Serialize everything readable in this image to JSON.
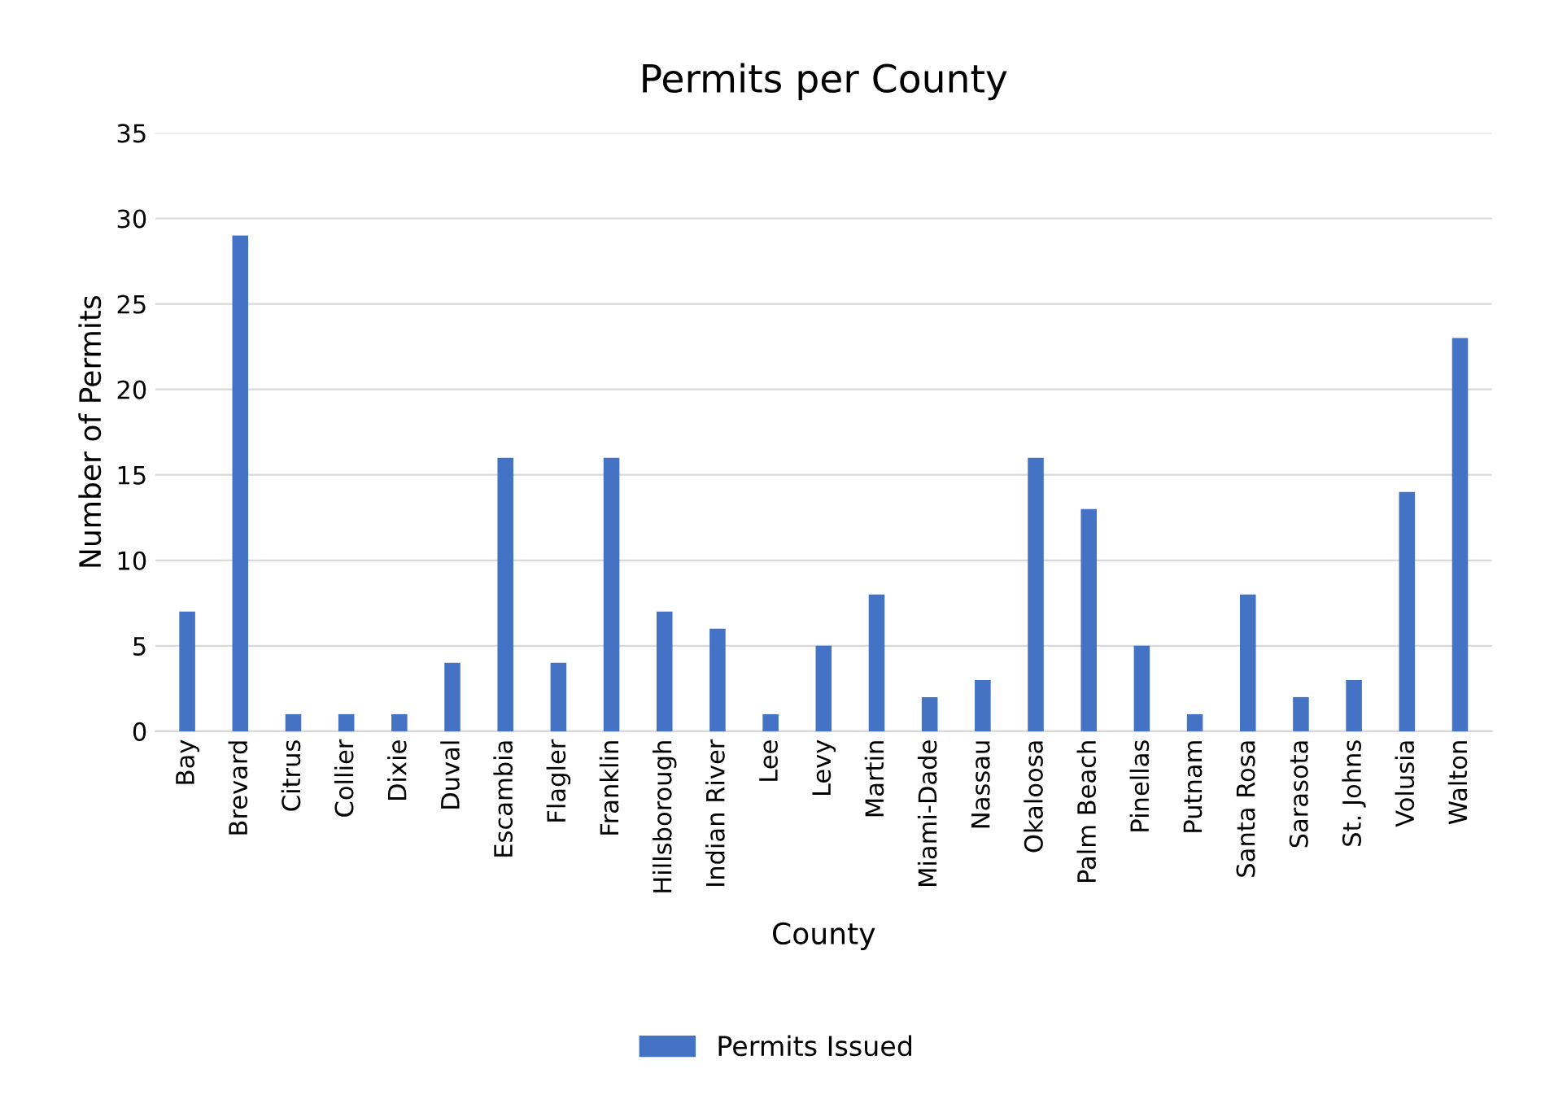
{
  "chart_data": {
    "type": "bar",
    "title": "Permits per County",
    "xlabel": "County",
    "ylabel": "Number of Permits",
    "categories": [
      "Bay",
      "Brevard",
      "Citrus",
      "Collier",
      "Dixie",
      "Duval",
      "Escambia",
      "Flagler",
      "Franklin",
      "Hillsborough",
      "Indian River",
      "Lee",
      "Levy",
      "Martin",
      "Miami-Dade",
      "Nassau",
      "Okaloosa",
      "Palm Beach",
      "Pinellas",
      "Putnam",
      "Santa Rosa",
      "Sarasota",
      "St. Johns",
      "Volusia",
      "Walton"
    ],
    "series": [
      {
        "name": "Permits Issued",
        "color": "#4472c4",
        "values": [
          7,
          29,
          1,
          1,
          1,
          4,
          16,
          4,
          16,
          7,
          6,
          1,
          5,
          8,
          2,
          3,
          16,
          13,
          5,
          1,
          8,
          2,
          3,
          14,
          23
        ]
      }
    ],
    "ylim": [
      0,
      35
    ],
    "yticks": [
      0,
      5,
      10,
      15,
      20,
      25,
      30,
      35
    ],
    "grid": "y",
    "legend": "bottom"
  }
}
